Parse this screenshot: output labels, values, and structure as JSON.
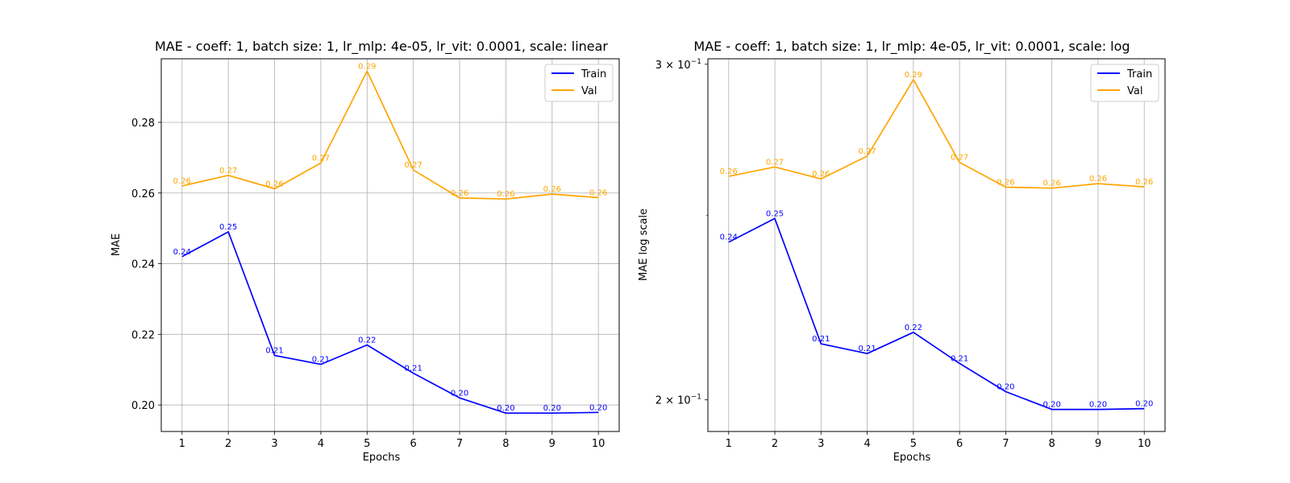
{
  "chart_data": [
    {
      "type": "line",
      "title": "MAE - coeff: 1, batch size: 1, lr_mlp: 4e-05, lr_vit: 0.0001, scale: linear",
      "xlabel": "Epochs",
      "ylabel": "MAE",
      "scale": "linear",
      "x": [
        1,
        2,
        3,
        4,
        5,
        6,
        7,
        8,
        9,
        10
      ],
      "xlim": [
        0.55,
        10.45
      ],
      "ylim": [
        0.1925,
        0.298
      ],
      "yticks": [
        0.2,
        0.22,
        0.24,
        0.26,
        0.28
      ],
      "ytick_labels": [
        "0.20",
        "0.22",
        "0.24",
        "0.26",
        "0.28"
      ],
      "grid": true,
      "legend_position": "top-right",
      "series": [
        {
          "name": "Train",
          "color": "#0000ff",
          "values": [
            0.242,
            0.249,
            0.214,
            0.2115,
            0.217,
            0.209,
            0.202,
            0.1977,
            0.1977,
            0.1979
          ],
          "labels": [
            "0.24",
            "0.25",
            "0.21",
            "0.21",
            "0.22",
            "0.21",
            "0.20",
            "0.20",
            "0.20",
            "0.20"
          ]
        },
        {
          "name": "Val",
          "color": "#ffa500",
          "values": [
            0.262,
            0.265,
            0.2612,
            0.2685,
            0.2945,
            0.2665,
            0.2586,
            0.2583,
            0.2597,
            0.2587
          ],
          "labels": [
            "0.26",
            "0.27",
            "0.26",
            "0.27",
            "0.29",
            "0.27",
            "0.26",
            "0.26",
            "0.26",
            "0.26"
          ]
        }
      ]
    },
    {
      "type": "line",
      "title": "MAE - coeff: 1, batch size: 1, lr_mlp: 4e-05, lr_vit: 0.0001, scale: log",
      "xlabel": "Epochs",
      "ylabel": "MAE log scale",
      "scale": "log",
      "x": [
        1,
        2,
        3,
        4,
        5,
        6,
        7,
        8,
        9,
        10
      ],
      "xlim": [
        0.55,
        10.45
      ],
      "ylim": [
        0.1925,
        0.302
      ],
      "yticks": [
        0.2,
        0.3
      ],
      "ytick_labels": [
        "2 × 10",
        "3 × 10"
      ],
      "ytick_exponent": "−1",
      "grid": "x-only",
      "legend_position": "top-right",
      "series": [
        {
          "name": "Train",
          "color": "#0000ff",
          "values": [
            0.242,
            0.249,
            0.214,
            0.2115,
            0.217,
            0.209,
            0.202,
            0.1977,
            0.1977,
            0.1979
          ],
          "labels": [
            "0.24",
            "0.25",
            "0.21",
            "0.21",
            "0.22",
            "0.21",
            "0.20",
            "0.20",
            "0.20",
            "0.20"
          ]
        },
        {
          "name": "Val",
          "color": "#ffa500",
          "values": [
            0.262,
            0.265,
            0.2612,
            0.2685,
            0.2945,
            0.2665,
            0.2586,
            0.2583,
            0.2597,
            0.2587
          ],
          "labels": [
            "0.26",
            "0.27",
            "0.26",
            "0.27",
            "0.29",
            "0.27",
            "0.26",
            "0.26",
            "0.26",
            "0.26"
          ]
        }
      ]
    }
  ]
}
